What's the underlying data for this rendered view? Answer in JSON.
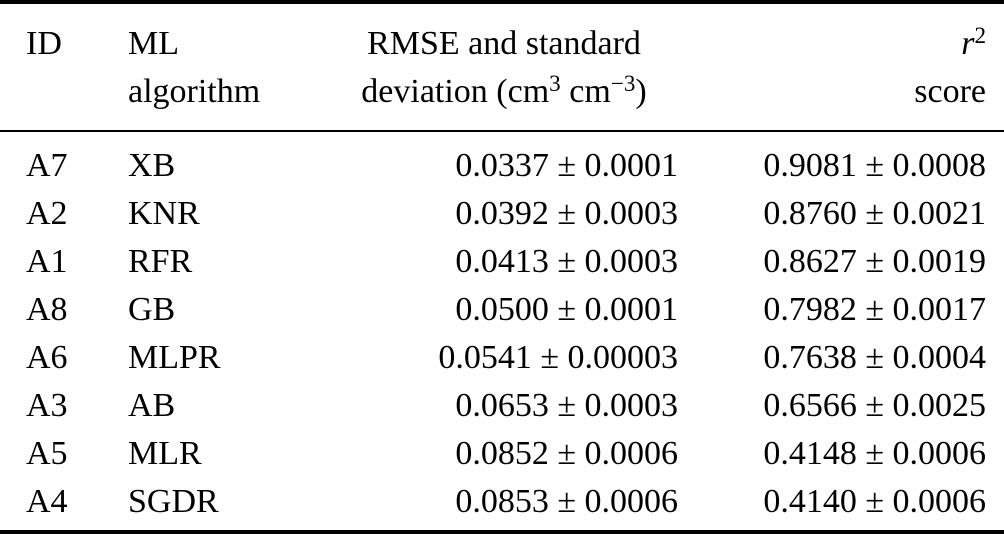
{
  "table": {
    "header": {
      "id": {
        "line1": "ID",
        "line2": ""
      },
      "algorithm": {
        "line1": "ML",
        "line2": "algorithm"
      },
      "rmse": {
        "line1": "RMSE and standard",
        "line2_prefix": "deviation (cm",
        "line2_sup1": "3",
        "line2_mid": " cm",
        "line2_sup2": "−3",
        "line2_suffix": ")"
      },
      "r2": {
        "line1_base": "r",
        "line1_sup": "2",
        "line2": "score"
      }
    },
    "rows": [
      {
        "id": "A7",
        "algorithm": "XB",
        "rmse": "0.0337 ± 0.0001",
        "r2": "0.9081 ± 0.0008"
      },
      {
        "id": "A2",
        "algorithm": "KNR",
        "rmse": "0.0392 ± 0.0003",
        "r2": "0.8760 ± 0.0021"
      },
      {
        "id": "A1",
        "algorithm": "RFR",
        "rmse": "0.0413 ± 0.0003",
        "r2": "0.8627 ± 0.0019"
      },
      {
        "id": "A8",
        "algorithm": "GB",
        "rmse": "0.0500 ± 0.0001",
        "r2": "0.7982 ± 0.0017"
      },
      {
        "id": "A6",
        "algorithm": "MLPR",
        "rmse": "0.0541 ± 0.00003",
        "r2": "0.7638 ± 0.0004"
      },
      {
        "id": "A3",
        "algorithm": "AB",
        "rmse": "0.0653 ± 0.0003",
        "r2": "0.6566 ± 0.0025"
      },
      {
        "id": "A5",
        "algorithm": "MLR",
        "rmse": "0.0852 ± 0.0006",
        "r2": "0.4148 ± 0.0006"
      },
      {
        "id": "A4",
        "algorithm": "SGDR",
        "rmse": "0.0853 ± 0.0006",
        "r2": "0.4140 ± 0.0006"
      }
    ],
    "colors": {
      "text": "#000000",
      "background": "#ffffff",
      "rule": "#000000"
    }
  }
}
